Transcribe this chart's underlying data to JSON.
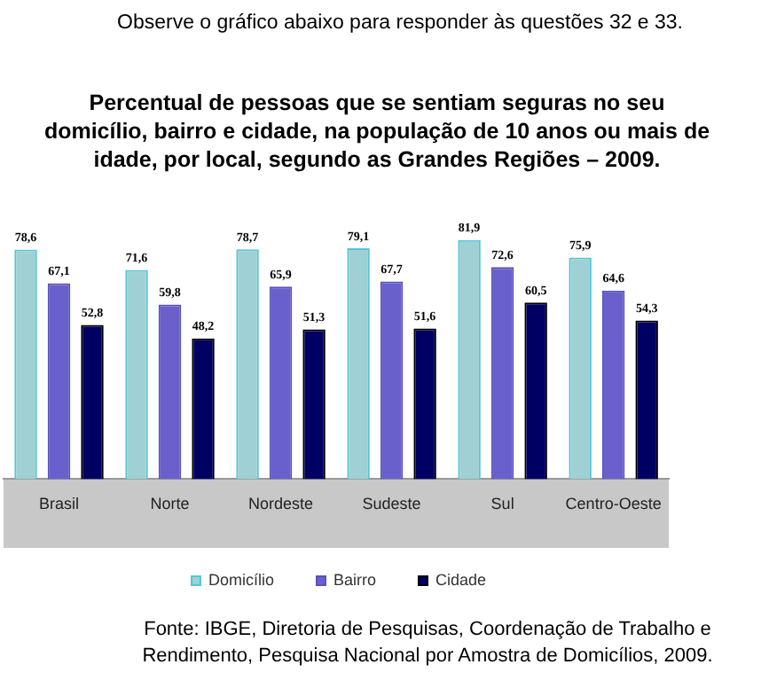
{
  "chart_data": {
    "type": "bar",
    "title": "Percentual de pessoas que se sentiam seguras no seu domicílio, bairro e cidade, na população de 10 anos ou mais de idade, por local, segundo as Grandes Regiões – 2009.",
    "categories": [
      "Brasil",
      "Norte",
      "Nordeste",
      "Sudeste",
      "Sul",
      "Centro-Oeste"
    ],
    "series": [
      {
        "name": "Domicílio",
        "color": "#9fd0d3",
        "values": [
          78.6,
          71.6,
          78.7,
          79.1,
          81.9,
          75.9
        ],
        "value_labels": [
          "78,6",
          "71,6",
          "78,7",
          "79,1",
          "81,9",
          "75,9"
        ]
      },
      {
        "name": "Bairro",
        "color": "#6a60cc",
        "values": [
          67.1,
          59.8,
          65.9,
          67.7,
          72.6,
          64.6
        ],
        "value_labels": [
          "67,1",
          "59,8",
          "65,9",
          "67,7",
          "72,6",
          "64,6"
        ]
      },
      {
        "name": "Cidade",
        "color": "#000064",
        "values": [
          52.8,
          48.2,
          51.3,
          51.6,
          60.5,
          54.3
        ],
        "value_labels": [
          "52,8",
          "48,2",
          "51,3",
          "51,6",
          "60,5",
          "54,3"
        ]
      }
    ],
    "tick_labels": "x",
    "grid": false,
    "legend": "bottom",
    "annotations": [
      "Observe o gráfico abaixo para responder às questões 32 e 33.",
      "Fonte: IBGE, Diretoria de Pesquisas, Coordenação de Trabalho e Rendimento, Pesquisa Nacional por Amostra de Domicílios, 2009."
    ]
  }
}
